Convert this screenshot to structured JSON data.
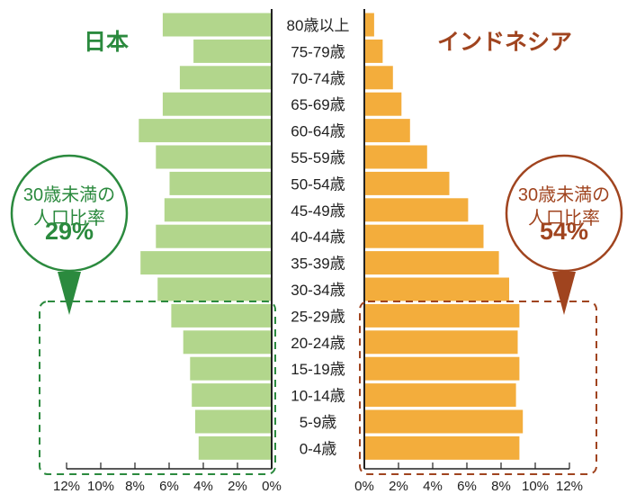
{
  "chart_data": {
    "type": "bar",
    "categories": [
      "80歳以上",
      "75-79歳",
      "70-74歳",
      "65-69歳",
      "60-64歳",
      "55-59歳",
      "50-54歳",
      "45-49歳",
      "40-44歳",
      "35-39歳",
      "30-34歳",
      "25-29歳",
      "20-24歳",
      "15-19歳",
      "10-14歳",
      "5-9歳",
      "0-4歳"
    ],
    "series": [
      {
        "name": "日本",
        "values": [
          6.4,
          4.6,
          5.4,
          6.4,
          7.8,
          6.8,
          6.0,
          6.3,
          6.8,
          7.7,
          6.7,
          5.9,
          5.2,
          4.8,
          4.7,
          4.5,
          4.3
        ]
      },
      {
        "name": "インドネシア",
        "values": [
          0.6,
          1.1,
          1.7,
          2.2,
          2.7,
          3.7,
          5.0,
          6.1,
          7.0,
          7.9,
          8.5,
          9.1,
          9.0,
          9.1,
          8.9,
          9.3,
          9.1
        ]
      }
    ],
    "xlim": [
      0,
      12
    ],
    "xticks_left": [
      "12%",
      "10%",
      "8%",
      "6%",
      "4%",
      "2%",
      "0%"
    ],
    "xticks_right": [
      "0%",
      "2%",
      "4%",
      "6%",
      "8%",
      "10%",
      "12%"
    ],
    "colors": {
      "japan_bar": "#b2d68c",
      "indonesia_bar": "#f3ad3c",
      "japan_accent": "#2b8a3e",
      "indonesia_accent": "#a0441f"
    },
    "callouts": {
      "japan": {
        "line1": "30歳未満の",
        "line2": "人口比率",
        "value": "29%"
      },
      "indonesia": {
        "line1": "30歳未満の",
        "line2": "人口比率",
        "value": "54%"
      }
    }
  }
}
